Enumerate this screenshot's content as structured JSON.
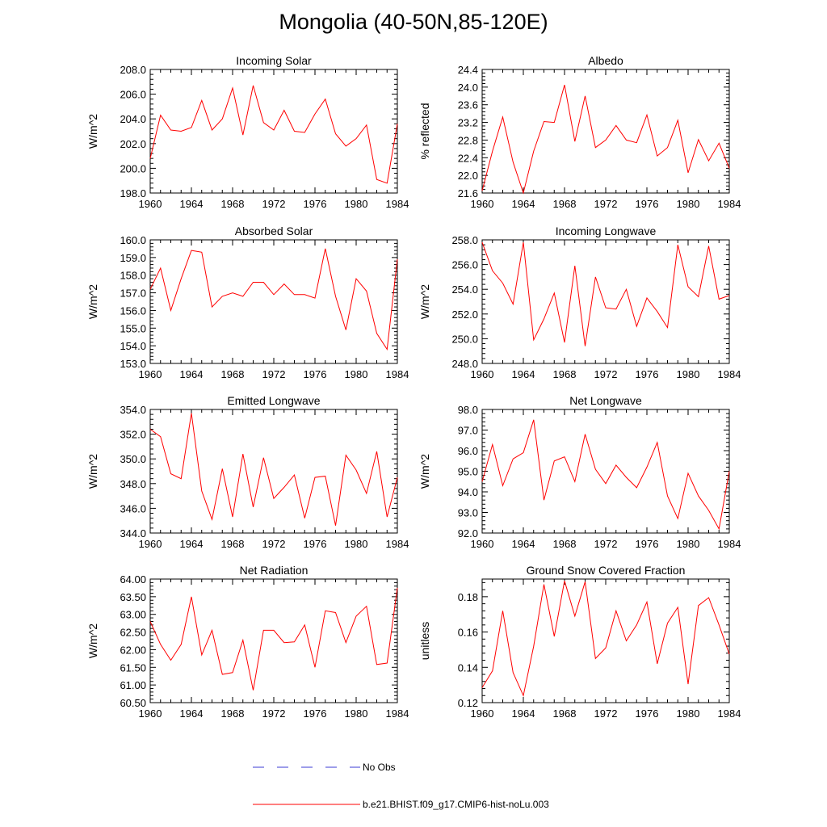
{
  "title": "Mongolia (40-50N,85-120E)",
  "legend": [
    {
      "label": "No Obs",
      "color": "#3b3bd6",
      "dash": true
    },
    {
      "label": "b.e21.BHIST.f09_g17.CMIP6-hist-noLu.003",
      "color": "#ff0000",
      "dash": false
    }
  ],
  "chart_data": [
    {
      "type": "line",
      "title": "Incoming Solar",
      "ylabel": "W/m^2",
      "xlim": [
        1960,
        1984
      ],
      "ylim": [
        198.0,
        208.0
      ],
      "xticks": [
        "1960",
        "1964",
        "1968",
        "1972",
        "1976",
        "1980",
        "1984"
      ],
      "yticks": [
        "198.0",
        "200.0",
        "202.0",
        "204.0",
        "206.0",
        "208.0"
      ],
      "series": [
        {
          "color": "#ff0000",
          "x": [
            1960,
            1961,
            1962,
            1963,
            1964,
            1965,
            1966,
            1967,
            1968,
            1969,
            1970,
            1971,
            1972,
            1973,
            1974,
            1975,
            1976,
            1977,
            1978,
            1979,
            1980,
            1981,
            1982,
            1983,
            1984
          ],
          "y": [
            200.8,
            204.3,
            203.1,
            203.0,
            203.3,
            205.5,
            203.1,
            204.0,
            206.5,
            202.7,
            206.7,
            203.7,
            203.1,
            204.7,
            203.0,
            202.9,
            204.4,
            205.6,
            202.8,
            201.8,
            202.4,
            203.5,
            199.1,
            198.8,
            203.6
          ]
        }
      ]
    },
    {
      "type": "line",
      "title": "Albedo",
      "ylabel": "% reflected",
      "xlim": [
        1960,
        1984
      ],
      "ylim": [
        21.6,
        24.4
      ],
      "xticks": [
        "1960",
        "1964",
        "1968",
        "1972",
        "1976",
        "1980",
        "1984"
      ],
      "yticks": [
        "21.6",
        "22.0",
        "22.4",
        "22.8",
        "23.2",
        "23.6",
        "24.0",
        "24.4"
      ],
      "series": [
        {
          "color": "#ff0000",
          "x": [
            1960,
            1961,
            1962,
            1963,
            1964,
            1965,
            1966,
            1967,
            1968,
            1969,
            1970,
            1971,
            1972,
            1973,
            1974,
            1975,
            1976,
            1977,
            1978,
            1979,
            1980,
            1981,
            1982,
            1983,
            1984
          ],
          "y": [
            21.65,
            22.55,
            23.32,
            22.3,
            21.6,
            22.55,
            23.22,
            23.2,
            24.05,
            22.77,
            23.8,
            22.63,
            22.8,
            23.13,
            22.8,
            22.74,
            23.37,
            22.44,
            22.63,
            23.25,
            22.06,
            22.81,
            22.33,
            22.73,
            22.16
          ]
        }
      ]
    },
    {
      "type": "line",
      "title": "Absorbed Solar",
      "ylabel": "W/m^2",
      "xlim": [
        1960,
        1984
      ],
      "ylim": [
        153.0,
        160.0
      ],
      "xticks": [
        "1960",
        "1964",
        "1968",
        "1972",
        "1976",
        "1980",
        "1984"
      ],
      "yticks": [
        "153.0",
        "154.0",
        "155.0",
        "156.0",
        "157.0",
        "158.0",
        "159.0",
        "160.0"
      ],
      "series": [
        {
          "color": "#ff0000",
          "x": [
            1960,
            1961,
            1962,
            1963,
            1964,
            1965,
            1966,
            1967,
            1968,
            1969,
            1970,
            1971,
            1972,
            1973,
            1974,
            1975,
            1976,
            1977,
            1978,
            1979,
            1980,
            1981,
            1982,
            1983,
            1984
          ],
          "y": [
            157.2,
            158.4,
            156.0,
            157.8,
            159.4,
            159.3,
            156.2,
            156.8,
            157.0,
            156.8,
            157.6,
            157.6,
            156.9,
            157.5,
            156.9,
            156.9,
            156.7,
            159.5,
            156.8,
            154.9,
            157.8,
            157.1,
            154.7,
            153.8,
            158.9
          ]
        }
      ]
    },
    {
      "type": "line",
      "title": "Incoming Longwave",
      "ylabel": "W/m^2",
      "xlim": [
        1960,
        1984
      ],
      "ylim": [
        248.0,
        258.0
      ],
      "xticks": [
        "1960",
        "1964",
        "1968",
        "1972",
        "1976",
        "1980",
        "1984"
      ],
      "yticks": [
        "248.0",
        "250.0",
        "252.0",
        "254.0",
        "256.0",
        "258.0"
      ],
      "series": [
        {
          "color": "#ff0000",
          "x": [
            1960,
            1961,
            1962,
            1963,
            1964,
            1965,
            1966,
            1967,
            1968,
            1969,
            1970,
            1971,
            1972,
            1973,
            1974,
            1975,
            1976,
            1977,
            1978,
            1979,
            1980,
            1981,
            1982,
            1983,
            1984
          ],
          "y": [
            257.8,
            255.5,
            254.5,
            252.8,
            257.8,
            249.9,
            251.6,
            253.7,
            249.7,
            255.9,
            249.4,
            255.0,
            252.5,
            252.4,
            254.0,
            251.0,
            253.3,
            252.2,
            250.9,
            257.6,
            254.2,
            253.4,
            257.5,
            253.2,
            253.5
          ]
        }
      ]
    },
    {
      "type": "line",
      "title": "Emitted Longwave",
      "ylabel": "W/m^2",
      "xlim": [
        1960,
        1984
      ],
      "ylim": [
        344.0,
        354.0
      ],
      "xticks": [
        "1960",
        "1964",
        "1968",
        "1972",
        "1976",
        "1980",
        "1984"
      ],
      "yticks": [
        "344.0",
        "346.0",
        "348.0",
        "350.0",
        "352.0",
        "354.0"
      ],
      "series": [
        {
          "color": "#ff0000",
          "x": [
            1960,
            1961,
            1962,
            1963,
            1964,
            1965,
            1966,
            1967,
            1968,
            1969,
            1970,
            1971,
            1972,
            1973,
            1974,
            1975,
            1976,
            1977,
            1978,
            1979,
            1980,
            1981,
            1982,
            1983,
            1984
          ],
          "y": [
            352.4,
            351.8,
            348.8,
            348.4,
            353.7,
            347.4,
            345.1,
            349.2,
            345.3,
            350.4,
            346.1,
            350.1,
            346.8,
            347.7,
            348.7,
            345.2,
            348.5,
            348.6,
            344.6,
            350.3,
            349.1,
            347.2,
            350.6,
            345.3,
            348.5
          ]
        }
      ]
    },
    {
      "type": "line",
      "title": "Net Longwave",
      "ylabel": "W/m^2",
      "xlim": [
        1960,
        1984
      ],
      "ylim": [
        92.0,
        98.0
      ],
      "xticks": [
        "1960",
        "1964",
        "1968",
        "1972",
        "1976",
        "1980",
        "1984"
      ],
      "yticks": [
        "92.0",
        "93.0",
        "94.0",
        "95.0",
        "96.0",
        "97.0",
        "98.0"
      ],
      "series": [
        {
          "color": "#ff0000",
          "x": [
            1960,
            1961,
            1962,
            1963,
            1964,
            1965,
            1966,
            1967,
            1968,
            1969,
            1970,
            1971,
            1972,
            1973,
            1974,
            1975,
            1976,
            1977,
            1978,
            1979,
            1980,
            1981,
            1982,
            1983,
            1984
          ],
          "y": [
            94.5,
            96.3,
            94.3,
            95.6,
            95.9,
            97.5,
            93.6,
            95.5,
            95.7,
            94.5,
            96.8,
            95.1,
            94.4,
            95.3,
            94.7,
            94.2,
            95.2,
            96.4,
            93.8,
            92.7,
            94.9,
            93.8,
            93.1,
            92.2,
            95.0
          ]
        }
      ]
    },
    {
      "type": "line",
      "title": "Net Radiation",
      "ylabel": "W/m^2",
      "xlim": [
        1960,
        1984
      ],
      "ylim": [
        60.5,
        64.0
      ],
      "xticks": [
        "1960",
        "1964",
        "1968",
        "1972",
        "1976",
        "1980",
        "1984"
      ],
      "yticks": [
        "60.50",
        "61.00",
        "61.50",
        "62.00",
        "62.50",
        "63.00",
        "63.50",
        "64.00"
      ],
      "series": [
        {
          "color": "#ff0000",
          "x": [
            1960,
            1961,
            1962,
            1963,
            1964,
            1965,
            1966,
            1967,
            1968,
            1969,
            1970,
            1971,
            1972,
            1973,
            1974,
            1975,
            1976,
            1977,
            1978,
            1979,
            1980,
            1981,
            1982,
            1983,
            1984
          ],
          "y": [
            62.8,
            62.15,
            61.7,
            62.15,
            63.5,
            61.85,
            62.55,
            61.3,
            61.35,
            62.27,
            60.85,
            62.55,
            62.55,
            62.2,
            62.22,
            62.7,
            61.5,
            63.1,
            63.05,
            62.2,
            62.95,
            63.23,
            61.58,
            61.62,
            63.75
          ]
        }
      ]
    },
    {
      "type": "line",
      "title": "Ground Snow Covered Fraction",
      "ylabel": "unitless",
      "xlim": [
        1960,
        1984
      ],
      "ylim": [
        0.12,
        0.19
      ],
      "xticks": [
        "1960",
        "1964",
        "1968",
        "1972",
        "1976",
        "1980",
        "1984"
      ],
      "yticks": [
        "0.12",
        "0.14",
        "0.16",
        "0.18"
      ],
      "series": [
        {
          "color": "#ff0000",
          "x": [
            1960,
            1961,
            1962,
            1963,
            1964,
            1965,
            1966,
            1967,
            1968,
            1969,
            1970,
            1971,
            1972,
            1973,
            1974,
            1975,
            1976,
            1977,
            1978,
            1979,
            1980,
            1981,
            1982,
            1983,
            1984
          ],
          "y": [
            0.1285,
            0.138,
            0.172,
            0.137,
            0.124,
            0.152,
            0.187,
            0.1575,
            0.189,
            0.169,
            0.1885,
            0.145,
            0.151,
            0.172,
            0.155,
            0.164,
            0.177,
            0.142,
            0.165,
            0.174,
            0.1305,
            0.175,
            0.1795,
            0.164,
            0.1475
          ]
        }
      ]
    }
  ]
}
